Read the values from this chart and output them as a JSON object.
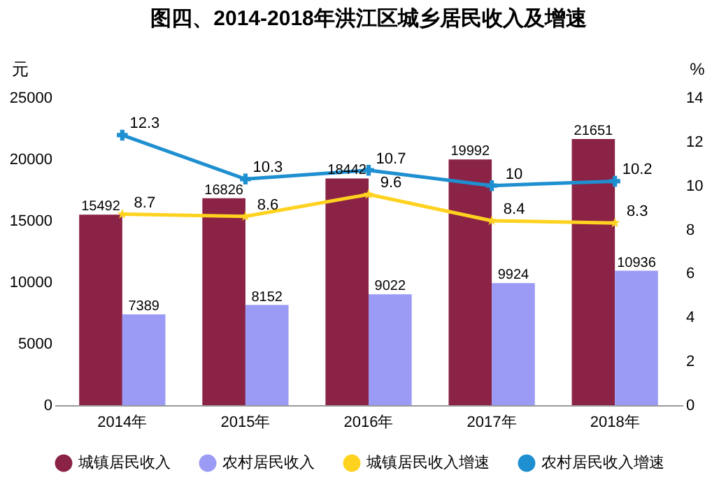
{
  "chart_data": {
    "type": "bar",
    "title": "图四、2014-2018年洪江区城乡居民收入及增速",
    "categories": [
      "2014年",
      "2015年",
      "2016年",
      "2017年",
      "2018年"
    ],
    "series": [
      {
        "name": "城镇居民收入",
        "color": "#8b2346",
        "values": [
          15492,
          16826,
          18442,
          19992,
          21651
        ]
      },
      {
        "name": "农村居民收入",
        "color": "#9b9bf5",
        "values": [
          7389,
          8152,
          9022,
          9924,
          10936
        ]
      },
      {
        "name": "城镇居民收入增速",
        "type": "line",
        "axis": "y2",
        "marker": "star",
        "color": "#ffd21f",
        "values": [
          8.7,
          8.6,
          9.6,
          8.4,
          8.3
        ]
      },
      {
        "name": "农村居民收入增速",
        "type": "line",
        "axis": "y2",
        "marker": "cross",
        "color": "#1e8fd0",
        "values": [
          12.3,
          10.3,
          10.7,
          10.0,
          10.2
        ]
      }
    ],
    "ylabel": "元",
    "y2label": "%",
    "ylim": [
      0,
      25000
    ],
    "yticks": [
      0,
      5000,
      10000,
      15000,
      20000,
      25000
    ],
    "y2lim": [
      0,
      14
    ],
    "y2ticks": [
      0,
      2,
      4,
      6,
      8,
      10,
      12,
      14
    ],
    "data_labels": true,
    "legend": "bottom",
    "grid": false
  }
}
